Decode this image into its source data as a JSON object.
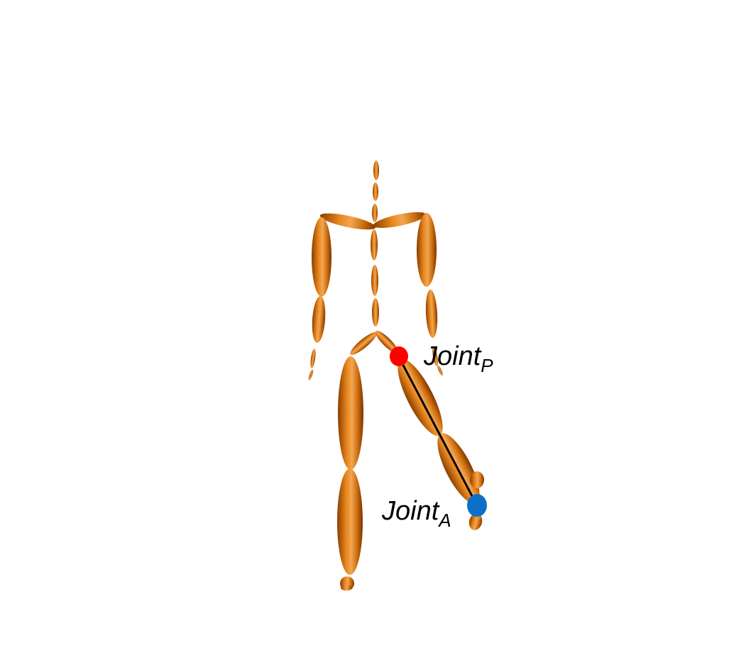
{
  "diagram": {
    "labels": {
      "proximal": {
        "main": "Joint",
        "sub": "P"
      },
      "anchor": {
        "main": "Joint",
        "sub": "A"
      }
    },
    "colors": {
      "body": "#c8680a",
      "body_dark": "#8a3e00",
      "body_highlight": "#f2a650",
      "joint_p": "#ff0000",
      "joint_a": "#0a70c8",
      "line": "#000000",
      "background": "#ffffff"
    }
  }
}
